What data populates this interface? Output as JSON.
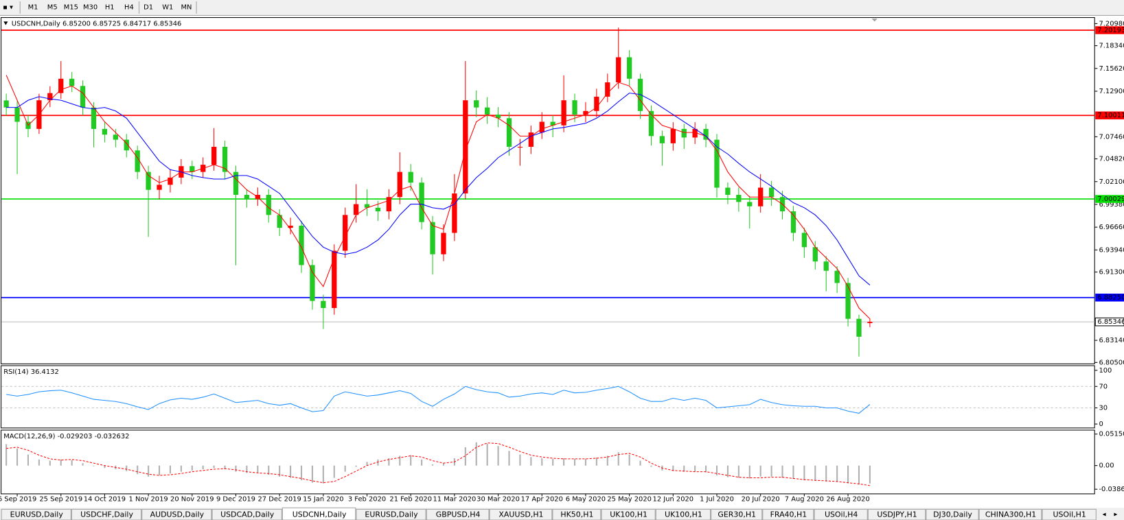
{
  "toolbar": {
    "timeframes": [
      "M1",
      "M5",
      "M15",
      "M30",
      "H1",
      "H4",
      "D1",
      "W1",
      "MN"
    ]
  },
  "tabs": {
    "items": [
      "EURUSD,Daily",
      "USDCHF,Daily",
      "AUDUSD,Daily",
      "USDCAD,Daily",
      "USDCNH,Daily",
      "EURUSD,Daily",
      "GBPUSD,H4",
      "XAUUSD,H1",
      "HK50,H1",
      "UK100,H1",
      "UK100,H1",
      "GER30,H1",
      "FRA40,H1",
      "USOil,H4",
      "USDJPY,H1",
      "DJ30,Daily",
      "CHINA300,H1",
      "USOil,H1"
    ],
    "active": 4
  },
  "chart_data": [
    {
      "type": "candlestick",
      "title": "USDCNH,Daily 6.85200 6.85725 6.84717 6.85346",
      "up_color": "#ff0000",
      "down_color": "#22c922",
      "categories": [
        null,
        "6 Sep 2019",
        null,
        null,
        null,
        "25 Sep 2019",
        null,
        null,
        null,
        "14 Oct 2019",
        null,
        null,
        null,
        "1 Nov 2019",
        null,
        null,
        null,
        "20 Nov 2019",
        null,
        null,
        null,
        "9 Dec 2019",
        null,
        null,
        null,
        "27 Dec 2019",
        null,
        null,
        null,
        "15 Jan 2020",
        null,
        null,
        null,
        "3 Feb 2020",
        null,
        null,
        null,
        "21 Feb 2020",
        null,
        null,
        null,
        "11 Mar 2020",
        null,
        null,
        null,
        "30 Mar 2020",
        null,
        null,
        null,
        "17 Apr 2020",
        null,
        null,
        null,
        "6 May 2020",
        null,
        null,
        null,
        "25 May 2020",
        null,
        null,
        null,
        "12 Jun 2020",
        null,
        null,
        null,
        "1 Jul 2020",
        null,
        null,
        null,
        "20 Jul 2020",
        null,
        null,
        null,
        "7 Aug 2020",
        null,
        null,
        null,
        "26 Aug 2020",
        null,
        null
      ],
      "open": [
        7.118,
        7.1096,
        7.0925,
        7.084,
        7.1182,
        7.1268,
        7.1439,
        7.1353,
        7.1096,
        7.084,
        7.0771,
        7.0711,
        7.0583,
        7.0326,
        7.0112,
        7.0172,
        7.0258,
        7.0395,
        7.0326,
        7.0412,
        7.0626,
        7.0326,
        7.0052,
        7.0001,
        7.0052,
        6.9812,
        6.9658,
        6.9684,
        6.9213,
        6.8785,
        6.87,
        6.9384,
        6.9812,
        6.9941,
        6.9898,
        6.9855,
        7.0026,
        7.0326,
        7.0198,
        6.9727,
        6.9342,
        6.9598,
        7.0069,
        7.1182,
        7.1096,
        7.1011,
        7.0968,
        7.0626,
        7.0626,
        7.0797,
        7.0925,
        7.0882,
        7.1182,
        7.1011,
        7.1054,
        7.1225,
        7.1396,
        7.1696,
        7.1439,
        7.1054,
        7.0754,
        7.0668,
        7.084,
        7.0737,
        7.084,
        7.0711,
        7.0138,
        7.0052,
        6.9967,
        6.9915,
        7.0138,
        7.0026,
        6.9855,
        6.9598,
        6.9427,
        6.9256,
        6.9145,
        6.8999,
        6.8571,
        6.852
      ],
      "high": [
        7.126,
        7.118,
        7.1,
        7.126,
        7.135,
        7.165,
        7.152,
        7.142,
        7.116,
        7.092,
        7.084,
        7.078,
        7.064,
        7.04,
        7.028,
        7.036,
        7.048,
        7.046,
        7.05,
        7.085,
        7.07,
        7.04,
        7.012,
        7.014,
        7.012,
        6.988,
        6.978,
        6.974,
        6.928,
        6.886,
        6.946,
        6.99,
        7.018,
        7.012,
        6.998,
        7.012,
        7.056,
        7.042,
        7.026,
        6.98,
        6.97,
        7.03,
        7.165,
        7.13,
        7.122,
        7.11,
        7.104,
        7.072,
        7.088,
        7.104,
        7.1,
        7.148,
        7.126,
        7.116,
        7.132,
        7.15,
        7.205,
        7.178,
        7.15,
        7.112,
        7.082,
        7.092,
        7.09,
        7.092,
        7.09,
        7.078,
        7.02,
        7.014,
        7.004,
        7.03,
        7.022,
        7.01,
        6.992,
        6.966,
        6.95,
        6.932,
        6.92,
        6.906,
        6.862,
        6.85725
      ],
      "low": [
        7.1,
        7.03,
        7.074,
        7.078,
        7.11,
        7.12,
        7.128,
        7.1,
        7.062,
        7.068,
        7.062,
        7.05,
        7.024,
        6.955,
        7,
        7.008,
        7.018,
        7.024,
        7.026,
        7.034,
        7.024,
        6.921,
        6.99,
        6.992,
        6.972,
        6.956,
        6.958,
        6.912,
        6.868,
        6.845,
        6.862,
        6.93,
        6.972,
        6.98,
        6.974,
        6.976,
        6.994,
        7.01,
        6.964,
        6.91,
        6.926,
        6.95,
        7,
        7.098,
        7.09,
        7.086,
        7.052,
        7.04,
        7.054,
        7.072,
        7.074,
        7.08,
        7.092,
        7.092,
        7.098,
        7.116,
        7.132,
        7.136,
        7.096,
        7.064,
        7.04,
        7.058,
        7.06,
        7.066,
        7.062,
        7.002,
        6.994,
        6.985,
        6.965,
        6.984,
        6.992,
        6.976,
        6.95,
        6.93,
        6.916,
        6.89,
        6.888,
        6.848,
        6.812,
        6.84717
      ],
      "close": [
        7.1096,
        7.0925,
        7.084,
        7.1182,
        7.1268,
        7.1439,
        7.1353,
        7.1096,
        7.084,
        7.0771,
        7.0711,
        7.0583,
        7.0326,
        7.0112,
        7.0172,
        7.0258,
        7.0395,
        7.0326,
        7.0412,
        7.0626,
        7.0326,
        7.0052,
        7.0001,
        7.0052,
        6.9812,
        6.9658,
        6.9684,
        6.9213,
        6.8785,
        6.87,
        6.9384,
        6.9812,
        6.9941,
        6.9898,
        6.9855,
        7.0026,
        7.0326,
        7.0198,
        6.9727,
        6.9342,
        6.9598,
        7.0069,
        7.1182,
        7.1096,
        7.1011,
        7.0968,
        7.0626,
        7.0626,
        7.0797,
        7.0925,
        7.0882,
        7.1182,
        7.1011,
        7.1054,
        7.1225,
        7.1396,
        7.1696,
        7.1439,
        7.1054,
        7.0754,
        7.0668,
        7.084,
        7.0737,
        7.084,
        7.0711,
        7.0138,
        7.0052,
        6.9967,
        6.9915,
        7.0138,
        7.0026,
        6.9855,
        6.9598,
        6.9427,
        6.9256,
        6.9145,
        6.8999,
        6.8571,
        6.8357,
        6.85346
      ],
      "moving_averages": [
        {
          "color": "#ff0000",
          "values": [
            7.1482,
            7.1182,
            7.0882,
            7.1011,
            7.1182,
            7.131,
            7.1353,
            7.1268,
            7.1096,
            7.0925,
            7.0797,
            7.0668,
            7.0497,
            7.0283,
            7.0198,
            7.0241,
            7.0326,
            7.0326,
            7.0369,
            7.0412,
            7.0369,
            7.0241,
            7.0112,
            7.0026,
            6.9898,
            6.9812,
            6.9641,
            6.9427,
            6.9128,
            6.8957,
            6.9299,
            6.9556,
            6.9812,
            6.9898,
            6.9941,
            6.9984,
            7.0112,
            7.0155,
            6.9898,
            6.9684,
            6.9641,
            7.0069,
            7.0583,
            7.0925,
            7.1011,
            7.0968,
            7.0882,
            7.0754,
            7.0754,
            7.084,
            7.0882,
            7.0925,
            7.0968,
            7.1011,
            7.1096,
            7.1268,
            7.1396,
            7.1353,
            7.1182,
            7.1011,
            7.0882,
            7.084,
            7.0797,
            7.0797,
            7.0754,
            7.0583,
            7.0326,
            7.0155,
            7.0026,
            7.0026,
            7.0026,
            6.9941,
            6.9812,
            6.9641,
            6.9427,
            6.9299,
            6.9171,
            6.8957,
            6.87,
            6.8571
          ]
        },
        {
          "color": "#0000ff",
          "values": [
            7.1096,
            7.1096,
            7.1182,
            7.1225,
            7.1199,
            7.1182,
            7.1139,
            7.1096,
            7.1079,
            7.1096,
            7.1054,
            7.0968,
            7.0797,
            7.0626,
            7.0455,
            7.0352,
            7.0326,
            7.0283,
            7.0258,
            7.0241,
            7.0241,
            7.0283,
            7.0283,
            7.0241,
            7.0155,
            7.0069,
            6.9898,
            6.9727,
            6.9556,
            6.9427,
            6.9367,
            6.9342,
            6.9367,
            6.9427,
            6.9513,
            6.9641,
            6.9812,
            6.9941,
            6.9941,
            6.9898,
            6.9881,
            6.9941,
            7.0112,
            7.0258,
            7.0369,
            7.0497,
            7.0583,
            7.0668,
            7.0754,
            7.0797,
            7.084,
            7.0857,
            7.0882,
            7.0908,
            7.0968,
            7.1054,
            7.1165,
            7.1268,
            7.1251,
            7.1182,
            7.1096,
            7.1011,
            7.0925,
            7.084,
            7.0754,
            7.0626,
            7.054,
            7.0429,
            7.0326,
            7.0241,
            7.0155,
            7.0052,
            6.9958,
            6.9898,
            6.9812,
            6.9684,
            6.9513,
            6.9299,
            6.9085,
            6.8974
          ]
        }
      ],
      "levels": [
        {
          "value": 7.20193,
          "color": "#ff0000"
        },
        {
          "value": 7.10011,
          "color": "#ff0000"
        },
        {
          "value": 7.00029,
          "color": "#00dd00"
        },
        {
          "value": 6.8825,
          "label": "6.88250",
          "color": "#0000ff"
        }
      ],
      "ylim": [
        6.8033,
        7.2166
      ],
      "yticks": [
        {
          "value": 7.2098,
          "label": "7.20980"
        },
        {
          "value": 7.1834,
          "label": "7.18340"
        },
        {
          "value": 7.1562,
          "label": "7.15620"
        },
        {
          "value": 7.129,
          "label": "7.12900"
        },
        {
          "value": 7.0746,
          "label": "7.07460"
        },
        {
          "value": 7.0482,
          "label": "7.04820"
        },
        {
          "value": 7.021,
          "label": "7.02100"
        },
        {
          "value": 6.9938,
          "label": "6.99380"
        },
        {
          "value": 6.9666,
          "label": "6.96660"
        },
        {
          "value": 6.9394,
          "label": "6.93940"
        },
        {
          "value": 6.913,
          "label": "6.91300"
        },
        {
          "value": 6.8314,
          "label": "6.83140"
        },
        {
          "value": 6.805,
          "label": "6.80500"
        }
      ]
    },
    {
      "type": "line",
      "title": "RSI(14) 36.4132",
      "color": "#1e90ff",
      "values": [
        55,
        52,
        55,
        60,
        62,
        63,
        58,
        52,
        46,
        44,
        42,
        38,
        32,
        27,
        38,
        45,
        48,
        46,
        50,
        56,
        48,
        40,
        42,
        44,
        38,
        35,
        38,
        30,
        23,
        25,
        52,
        60,
        56,
        52,
        54,
        58,
        62,
        57,
        42,
        33,
        46,
        56,
        70,
        64,
        60,
        58,
        50,
        52,
        56,
        58,
        55,
        63,
        58,
        59,
        63,
        66,
        70,
        60,
        48,
        42,
        42,
        48,
        44,
        48,
        44,
        30,
        32,
        34,
        36,
        46,
        40,
        36,
        34,
        33,
        33,
        30,
        30,
        24,
        20,
        36.4132
      ],
      "ylim": [
        -8,
        108
      ],
      "yticks": [
        0,
        30,
        70,
        100
      ],
      "levels": [
        70,
        30
      ]
    },
    {
      "type": "macd",
      "title": "MACD(12,26,9) -0.029203 -0.032632",
      "histogram_color": "#b0b0b0",
      "signal_color": "#ff0000",
      "histogram": [
        0.035,
        0.028,
        0.018,
        0.01,
        0.008,
        0.01,
        0.009,
        0.004,
        -0.001,
        -0.004,
        -0.006,
        -0.009,
        -0.014,
        -0.018,
        -0.016,
        -0.013,
        -0.01,
        -0.008,
        -0.006,
        -0.004,
        -0.006,
        -0.01,
        -0.012,
        -0.012,
        -0.015,
        -0.018,
        -0.02,
        -0.024,
        -0.028,
        -0.029,
        -0.02,
        -0.01,
        -0.002,
        0.006,
        0.01,
        0.012,
        0.016,
        0.017,
        0.01,
        0.002,
        0.004,
        0.012,
        0.03,
        0.038,
        0.036,
        0.032,
        0.024,
        0.018,
        0.014,
        0.012,
        0.011,
        0.012,
        0.011,
        0.011,
        0.013,
        0.016,
        0.022,
        0.018,
        0.008,
        -0.002,
        -0.008,
        -0.009,
        -0.01,
        -0.01,
        -0.011,
        -0.016,
        -0.019,
        -0.02,
        -0.021,
        -0.018,
        -0.018,
        -0.02,
        -0.022,
        -0.024,
        -0.025,
        -0.026,
        -0.027,
        -0.029,
        -0.031,
        -0.029203
      ],
      "signal": [
        0.028,
        0.03,
        0.025,
        0.017,
        0.011,
        0.009,
        0.01,
        0.008,
        0.004,
        0,
        -0.003,
        -0.006,
        -0.01,
        -0.014,
        -0.016,
        -0.015,
        -0.013,
        -0.01,
        -0.008,
        -0.006,
        -0.005,
        -0.007,
        -0.01,
        -0.012,
        -0.013,
        -0.015,
        -0.018,
        -0.021,
        -0.025,
        -0.028,
        -0.026,
        -0.018,
        -0.009,
        0,
        0.006,
        0.01,
        0.013,
        0.016,
        0.014,
        0.008,
        0.004,
        0.006,
        0.016,
        0.03,
        0.037,
        0.036,
        0.03,
        0.023,
        0.017,
        0.014,
        0.012,
        0.011,
        0.011,
        0.011,
        0.012,
        0.014,
        0.018,
        0.02,
        0.014,
        0.004,
        -0.004,
        -0.008,
        -0.009,
        -0.01,
        -0.01,
        -0.013,
        -0.016,
        -0.019,
        -0.02,
        -0.02,
        -0.019,
        -0.019,
        -0.021,
        -0.023,
        -0.024,
        -0.025,
        -0.026,
        -0.028,
        -0.03,
        -0.032632
      ],
      "ylim": [
        -0.0468,
        0.0574
      ],
      "yticks": [
        0.051509,
        {
          "value": 0,
          "label": "0.00"
        },
        -0.038645
      ]
    }
  ]
}
